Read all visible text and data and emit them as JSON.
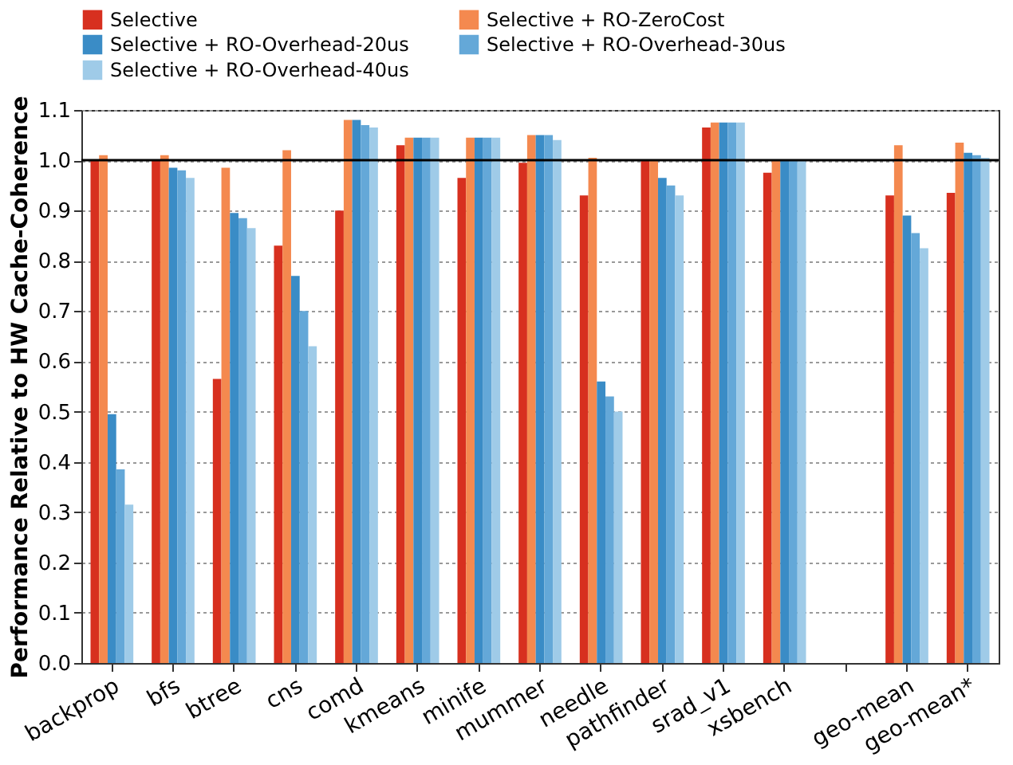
{
  "chart_data": {
    "type": "bar",
    "ylabel": "Performance Relative to HW Cache-Coherence",
    "categories": [
      "backprop",
      "bfs",
      "btree",
      "cns",
      "comd",
      "kmeans",
      "minife",
      "mummer",
      "needle",
      "pathfinder",
      "srad_v1",
      "xsbench",
      null,
      "geo-mean",
      "geo-mean*"
    ],
    "series": [
      {
        "name": "Selective",
        "color": "#d7301f",
        "values": [
          1.0,
          1.0,
          0.565,
          0.83,
          0.9,
          1.03,
          0.965,
          0.995,
          0.93,
          1.0,
          1.065,
          0.975,
          null,
          0.93,
          0.935
        ]
      },
      {
        "name": "Selective + RO-ZeroCost",
        "color": "#f4894f",
        "values": [
          1.01,
          1.01,
          0.985,
          1.02,
          1.08,
          1.045,
          1.045,
          1.05,
          1.005,
          1.0,
          1.075,
          1.0,
          null,
          1.03,
          1.035
        ]
      },
      {
        "name": "Selective + RO-Overhead-20us",
        "color": "#3a8cc6",
        "values": [
          0.495,
          0.985,
          0.895,
          0.77,
          1.08,
          1.045,
          1.045,
          1.05,
          0.56,
          0.965,
          1.075,
          1.0,
          null,
          0.89,
          1.015
        ]
      },
      {
        "name": "Selective + RO-Overhead-30us",
        "color": "#64a8d8",
        "values": [
          0.385,
          0.98,
          0.885,
          0.7,
          1.07,
          1.045,
          1.045,
          1.05,
          0.53,
          0.95,
          1.075,
          1.0,
          null,
          0.855,
          1.01
        ]
      },
      {
        "name": "Selective + RO-Overhead-40us",
        "color": "#9fcbe8",
        "values": [
          0.315,
          0.965,
          0.865,
          0.63,
          1.065,
          1.045,
          1.045,
          1.04,
          0.5,
          0.93,
          1.075,
          1.0,
          null,
          0.825,
          1.005
        ]
      }
    ],
    "ylim": [
      0,
      1.1
    ],
    "yticks": [
      {
        "value": 0,
        "label": "0.0"
      },
      {
        "value": 0.1,
        "label": "0.1"
      },
      {
        "value": 0.2,
        "label": "0.2"
      },
      {
        "value": 0.3,
        "label": "0.3"
      },
      {
        "value": 0.4,
        "label": "0.4"
      },
      {
        "value": 0.5,
        "label": "0.5"
      },
      {
        "value": 0.6,
        "label": "0.6"
      },
      {
        "value": 0.7,
        "label": "0.7"
      },
      {
        "value": 0.8,
        "label": "0.8"
      },
      {
        "value": 0.9,
        "label": "0.9"
      },
      {
        "value": 1.0,
        "label": "1.0"
      },
      {
        "value": 1.1,
        "label": "1.1"
      }
    ],
    "ref_lines": [
      {
        "axis": "y",
        "value": 1.0,
        "color": "#000000",
        "line_style": "solid"
      }
    ],
    "grid": "y",
    "legend": "top"
  }
}
